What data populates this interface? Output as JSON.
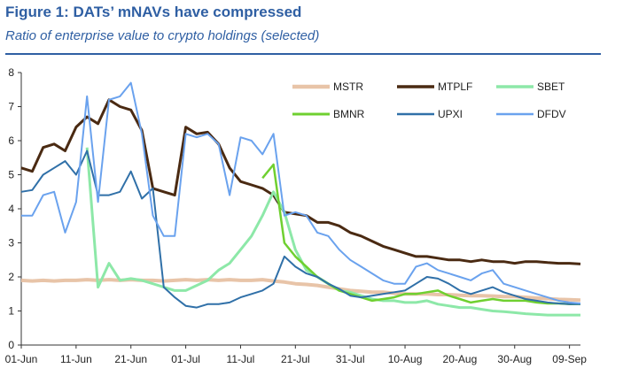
{
  "title": "Figure 1: DATs’ mNAVs have compressed",
  "subtitle": "Ratio of enterprise value to crypto holdings (selected)",
  "chart_data": {
    "type": "line",
    "x": [
      "01-Jun",
      "03-Jun",
      "05-Jun",
      "07-Jun",
      "09-Jun",
      "11-Jun",
      "13-Jun",
      "15-Jun",
      "17-Jun",
      "19-Jun",
      "21-Jun",
      "23-Jun",
      "25-Jun",
      "27-Jun",
      "29-Jun",
      "01-Jul",
      "03-Jul",
      "05-Jul",
      "07-Jul",
      "09-Jul",
      "11-Jul",
      "13-Jul",
      "15-Jul",
      "17-Jul",
      "19-Jul",
      "21-Jul",
      "23-Jul",
      "25-Jul",
      "27-Jul",
      "29-Jul",
      "31-Jul",
      "02-Aug",
      "04-Aug",
      "06-Aug",
      "08-Aug",
      "10-Aug",
      "12-Aug",
      "14-Aug",
      "16-Aug",
      "18-Aug",
      "20-Aug",
      "22-Aug",
      "24-Aug",
      "26-Aug",
      "28-Aug",
      "30-Aug",
      "01-Sep",
      "03-Sep",
      "05-Sep",
      "07-Sep",
      "09-Sep",
      "11-Sep"
    ],
    "x_ticks": [
      "01-Jun",
      "11-Jun",
      "21-Jun",
      "01-Jul",
      "11-Jul",
      "21-Jul",
      "31-Jul",
      "10-Aug",
      "20-Aug",
      "30-Aug",
      "09-Sep"
    ],
    "ylim": [
      0,
      8
    ],
    "y_ticks": [
      "0",
      "1",
      "2",
      "3",
      "4",
      "5",
      "6",
      "7",
      "8"
    ],
    "grid": false,
    "legend_position": "top-right",
    "series": [
      {
        "name": "MSTR",
        "color": "#e8c4a8",
        "width": 4,
        "values": [
          1.9,
          1.88,
          1.9,
          1.88,
          1.9,
          1.9,
          1.92,
          1.9,
          1.92,
          1.9,
          1.92,
          1.9,
          1.9,
          1.88,
          1.9,
          1.92,
          1.9,
          1.92,
          1.9,
          1.92,
          1.9,
          1.9,
          1.92,
          1.88,
          1.85,
          1.8,
          1.78,
          1.75,
          1.7,
          1.65,
          1.6,
          1.58,
          1.55,
          1.55,
          1.52,
          1.5,
          1.5,
          1.5,
          1.48,
          1.48,
          1.46,
          1.45,
          1.45,
          1.44,
          1.42,
          1.42,
          1.4,
          1.38,
          1.36,
          1.34,
          1.33,
          1.32
        ]
      },
      {
        "name": "MTPLF",
        "color": "#4a2a12",
        "width": 3,
        "values": [
          5.2,
          5.1,
          5.8,
          5.9,
          5.7,
          6.4,
          6.7,
          6.5,
          7.2,
          7.0,
          6.9,
          6.3,
          4.6,
          4.5,
          4.4,
          6.4,
          6.2,
          6.25,
          5.9,
          5.2,
          4.8,
          4.7,
          4.6,
          4.4,
          3.9,
          3.85,
          3.8,
          3.6,
          3.6,
          3.5,
          3.3,
          3.2,
          3.05,
          2.9,
          2.8,
          2.7,
          2.6,
          2.6,
          2.55,
          2.5,
          2.5,
          2.45,
          2.5,
          2.45,
          2.45,
          2.4,
          2.45,
          2.45,
          2.42,
          2.4,
          2.4,
          2.38
        ]
      },
      {
        "name": "SBET",
        "color": "#8de8a8",
        "width": 3,
        "values": [
          null,
          null,
          null,
          null,
          null,
          null,
          5.8,
          1.7,
          2.4,
          1.9,
          1.95,
          1.9,
          1.8,
          1.7,
          1.6,
          1.6,
          1.75,
          1.9,
          2.2,
          2.4,
          2.8,
          3.2,
          3.8,
          4.5,
          3.9,
          2.8,
          2.2,
          2.0,
          1.8,
          1.6,
          1.55,
          1.45,
          1.35,
          1.3,
          1.3,
          1.25,
          1.25,
          1.3,
          1.2,
          1.15,
          1.1,
          1.1,
          1.05,
          1.0,
          0.98,
          0.95,
          0.92,
          0.9,
          0.88,
          0.88,
          0.88,
          0.88
        ]
      },
      {
        "name": "BMNR",
        "color": "#6fd030",
        "width": 2.5,
        "values": [
          null,
          null,
          null,
          null,
          null,
          null,
          null,
          null,
          null,
          null,
          null,
          null,
          null,
          null,
          null,
          null,
          null,
          null,
          null,
          null,
          null,
          null,
          4.9,
          5.3,
          3.0,
          2.6,
          2.3,
          2.0,
          1.8,
          1.6,
          1.5,
          1.4,
          1.3,
          1.35,
          1.4,
          1.5,
          1.5,
          1.55,
          1.6,
          1.45,
          1.35,
          1.25,
          1.3,
          1.35,
          1.3,
          1.3,
          1.3,
          1.25,
          1.22,
          1.22,
          1.2,
          1.2
        ]
      },
      {
        "name": "UPXI",
        "color": "#3070a8",
        "width": 2,
        "values": [
          4.5,
          4.55,
          5.0,
          5.2,
          5.4,
          5.0,
          5.7,
          4.4,
          4.4,
          4.5,
          5.1,
          4.3,
          4.6,
          1.7,
          1.4,
          1.15,
          1.1,
          1.2,
          1.2,
          1.25,
          1.4,
          1.5,
          1.6,
          1.8,
          2.6,
          2.3,
          2.1,
          2.0,
          1.8,
          1.65,
          1.45,
          1.4,
          1.45,
          1.5,
          1.55,
          1.6,
          1.8,
          2.0,
          1.95,
          1.8,
          1.6,
          1.5,
          1.6,
          1.7,
          1.55,
          1.45,
          1.35,
          1.3,
          1.25,
          1.22,
          1.2,
          1.2
        ]
      },
      {
        "name": "DFDV",
        "color": "#6aa2ee",
        "width": 2,
        "values": [
          3.8,
          3.8,
          4.4,
          4.5,
          3.3,
          4.2,
          7.3,
          4.2,
          7.2,
          7.3,
          7.7,
          6.2,
          3.8,
          3.2,
          3.2,
          6.2,
          6.1,
          6.2,
          5.9,
          4.4,
          6.1,
          6.0,
          5.6,
          6.2,
          3.8,
          3.9,
          3.8,
          3.3,
          3.2,
          2.8,
          2.5,
          2.3,
          2.1,
          1.9,
          1.8,
          1.8,
          2.3,
          2.4,
          2.2,
          2.1,
          2.0,
          1.9,
          2.1,
          2.2,
          1.8,
          1.7,
          1.6,
          1.5,
          1.4,
          1.3,
          1.25,
          1.22
        ]
      }
    ]
  }
}
